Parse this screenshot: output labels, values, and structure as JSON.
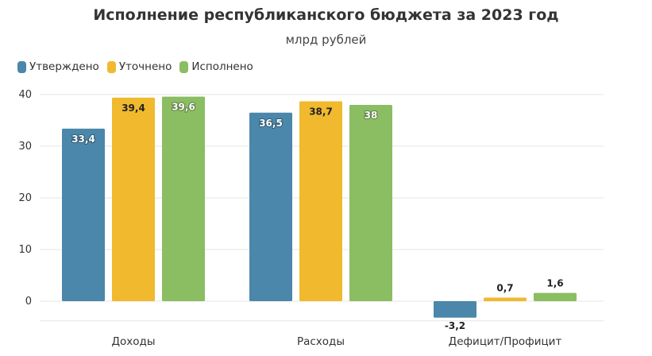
{
  "chart_data": {
    "type": "bar",
    "title": "Исполнение республиканского бюджета за 2023 год",
    "subtitle": "млрд рублей",
    "categories": [
      "Доходы",
      "Расходы",
      "Дефицит/Профицит"
    ],
    "series": [
      {
        "name": "Утверждено",
        "color": "#4b87aa",
        "values": [
          33.4,
          36.5,
          -3.2
        ],
        "labels": [
          "33,4",
          "36,5",
          "-3,2"
        ]
      },
      {
        "name": "Уточнено",
        "color": "#f0b92e",
        "values": [
          39.4,
          38.7,
          0.7
        ],
        "labels": [
          "39,4",
          "38,7",
          "0,7"
        ]
      },
      {
        "name": "Исполнено",
        "color": "#8bbd62",
        "values": [
          39.6,
          38.0,
          1.6
        ],
        "labels": [
          "39,6",
          "38",
          "1,6"
        ]
      }
    ],
    "y_ticks": [
      "0",
      "10",
      "20",
      "30",
      "40"
    ],
    "ylim": [
      -3.5,
      40
    ],
    "grid": true,
    "legend_position": "top-left"
  }
}
